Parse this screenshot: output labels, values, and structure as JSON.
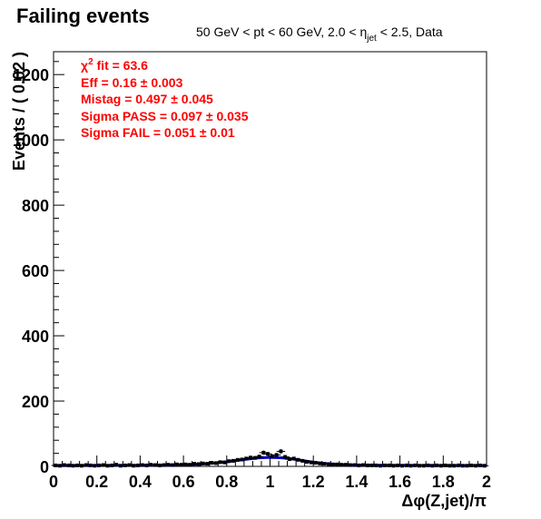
{
  "chart_data": {
    "type": "scatter",
    "title": "Failing events",
    "subtitle": {
      "part1": "50 GeV < pt < 60 GeV, 2.0 < ",
      "eta": "η",
      "eta_sub": "jet",
      "part2": " < 2.5, Data"
    },
    "xlabel": "Δφ(Z,jet)/π",
    "ylabel": "Events / ( 0.02 )",
    "xlim": [
      0,
      2
    ],
    "ylim": [
      0,
      1270
    ],
    "x_ticks": [
      0,
      0.2,
      0.4,
      0.6,
      0.8,
      1,
      1.2,
      1.4,
      1.6,
      1.8,
      2
    ],
    "x_tick_labels": [
      "0",
      "0.2",
      "0.4",
      "0.6",
      "0.8",
      "1",
      "1.2",
      "1.4",
      "1.6",
      "1.8",
      "2"
    ],
    "y_ticks": [
      0,
      200,
      400,
      600,
      800,
      1000,
      1200
    ],
    "y_tick_labels": [
      "0",
      "200",
      "400",
      "600",
      "800",
      "1000",
      "1200"
    ],
    "fit_results": {
      "chi2_sym": "χ",
      "chi2_sup": "2",
      "chi2_text": " fit = 63.6",
      "eff": "Eff = 0.16 ± 0.003",
      "mistag": "Mistag = 0.497 ± 0.045",
      "sigma_pass": "Sigma PASS = 0.097 ± 0.035",
      "sigma_fail": "Sigma FAIL = 0.051 ± 0.01"
    },
    "series": [
      {
        "kind": "data-points",
        "color": "#000000",
        "x": [
          0.01,
          0.03,
          0.05,
          0.07,
          0.09,
          0.11,
          0.13,
          0.15,
          0.17,
          0.19,
          0.21,
          0.23,
          0.25,
          0.27,
          0.29,
          0.31,
          0.33,
          0.35,
          0.37,
          0.39,
          0.41,
          0.43,
          0.45,
          0.47,
          0.49,
          0.51,
          0.53,
          0.55,
          0.57,
          0.59,
          0.61,
          0.63,
          0.65,
          0.67,
          0.69,
          0.71,
          0.73,
          0.75,
          0.77,
          0.79,
          0.81,
          0.83,
          0.85,
          0.87,
          0.89,
          0.91,
          0.93,
          0.95,
          0.97,
          0.99,
          1.01,
          1.03,
          1.05,
          1.07,
          1.09,
          1.11,
          1.13,
          1.15,
          1.17,
          1.19,
          1.21,
          1.23,
          1.25,
          1.27,
          1.29,
          1.31,
          1.33,
          1.35,
          1.37,
          1.39,
          1.41,
          1.43,
          1.45,
          1.47,
          1.49,
          1.51,
          1.53,
          1.55,
          1.57,
          1.59,
          1.61,
          1.63,
          1.65,
          1.67,
          1.69,
          1.71,
          1.73,
          1.75,
          1.77,
          1.79,
          1.81,
          1.83,
          1.85,
          1.87,
          1.89,
          1.91,
          1.93,
          1.95,
          1.97,
          1.99
        ],
        "y": [
          3,
          2,
          4,
          3,
          2,
          3,
          2,
          4,
          3,
          2,
          3,
          4,
          2,
          3,
          5,
          2,
          3,
          4,
          2,
          3,
          4,
          3,
          5,
          4,
          3,
          4,
          5,
          4,
          6,
          5,
          6,
          5,
          8,
          7,
          9,
          8,
          11,
          10,
          13,
          12,
          16,
          17,
          20,
          21,
          24,
          27,
          26,
          30,
          42,
          38,
          31,
          35,
          46,
          29,
          22,
          24,
          20,
          17,
          14,
          12,
          11,
          9,
          8,
          7,
          6,
          6,
          5,
          5,
          4,
          4,
          3,
          4,
          3,
          3,
          3,
          2,
          3,
          3,
          2,
          3,
          2,
          3,
          2,
          3,
          2,
          2,
          3,
          2,
          3,
          2,
          3,
          2,
          2,
          3,
          2,
          2,
          3,
          2,
          3,
          2
        ]
      },
      {
        "kind": "fit-curve",
        "color": "#0000cc",
        "x": [
          0,
          0.1,
          0.2,
          0.3,
          0.4,
          0.5,
          0.6,
          0.65,
          0.7,
          0.75,
          0.8,
          0.85,
          0.9,
          0.95,
          1.0,
          1.05,
          1.1,
          1.15,
          1.2,
          1.25,
          1.3,
          1.4,
          1.5,
          1.6,
          1.7,
          1.8,
          1.9,
          2.0
        ],
        "y": [
          2.5,
          2.5,
          2.6,
          2.7,
          3.0,
          3.5,
          4.6,
          5.8,
          7.8,
          10.6,
          14.2,
          18.3,
          22.5,
          25.9,
          27.6,
          26.5,
          22.8,
          17.9,
          13.0,
          9.0,
          6.1,
          3.9,
          3.0,
          2.7,
          2.6,
          2.5,
          2.5,
          2.5
        ]
      }
    ]
  }
}
